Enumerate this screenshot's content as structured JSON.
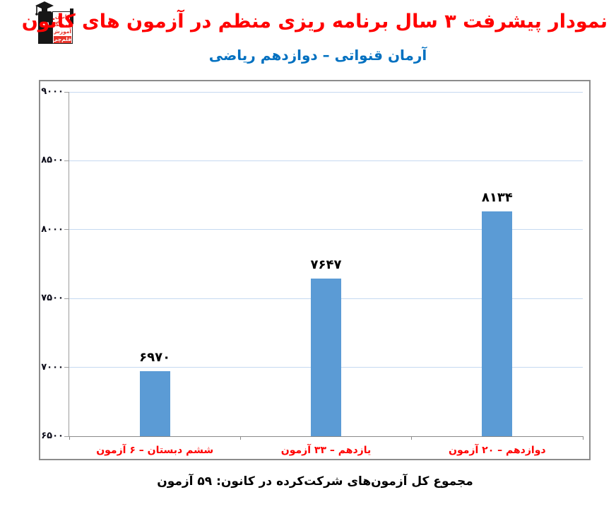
{
  "logo": {
    "sign_lines": [
      "کانون",
      "فرهنگی",
      "آموزش",
      "قلم‌چی"
    ],
    "colors": {
      "figure": "#161616",
      "sign_background": "#ffffff",
      "sign_text": "#e8332a",
      "last_line_background": "#e8332a",
      "last_line_text": "#ffffff"
    }
  },
  "header": {
    "title": "نمودار پیشرفت ۳ سال برنامه ریزی منظم در آزمون های کانون",
    "title_color": "#ff0000",
    "subtitle": "آرمان قنواتی – دوازدهم ریاضی",
    "subtitle_color": "#0070c0"
  },
  "chart_data": {
    "type": "bar",
    "title": "نمودار پیشرفت ۳ سال برنامه ریزی منظم در آزمون های کانون",
    "subtitle": "آرمان قنواتی – دوازدهم ریاضی",
    "categories": [
      "ششم دبستان – ۶ آزمون",
      "یازدهم – ۳۳ آزمون",
      "دوازدهم – ۲۰ آزمون"
    ],
    "values": [
      6970,
      7647,
      8134
    ],
    "value_labels": [
      "۶۹۷۰",
      "۷۶۴۷",
      "۸۱۳۴"
    ],
    "ylim": [
      6500,
      9000
    ],
    "y_ticks": [
      6500,
      7000,
      7500,
      8000,
      8500,
      9000
    ],
    "y_tick_labels": [
      "۶۵۰۰",
      "۷۰۰۰",
      "۷۵۰۰",
      "۸۰۰۰",
      "۸۵۰۰",
      "۹۰۰۰"
    ],
    "grid": true,
    "legend_position": "none",
    "xlabel": "",
    "ylabel": "",
    "bar_color": "#5b9bd5",
    "gridline_color": "#c5d9f1",
    "axis_color": "#9c9c9c",
    "category_label_color": "#ff0000",
    "value_label_color": "#000000"
  },
  "caption": {
    "text": "مجموع کل آزمون‌های شرکت‌کرده در کانون: ۵۹ آزمون"
  }
}
